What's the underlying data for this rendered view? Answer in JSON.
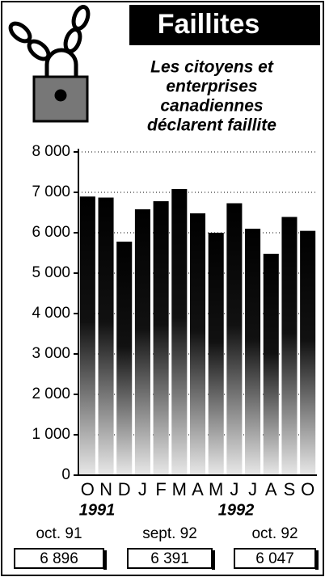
{
  "chart_data": {
    "type": "bar",
    "title": "Faillites",
    "subtitle_lines": [
      "Les citoyens et",
      "enterprises",
      "canadiennes",
      "déclarent faillite"
    ],
    "categories": [
      "O",
      "N",
      "D",
      "J",
      "F",
      "M",
      "A",
      "M",
      "J",
      "J",
      "A",
      "S",
      "O"
    ],
    "values": [
      6896,
      6870,
      5780,
      6580,
      6780,
      7080,
      6480,
      6000,
      6730,
      6100,
      5480,
      6391,
      6047
    ],
    "year_labels": [
      "1991",
      "1992"
    ],
    "ylim": [
      0,
      8000
    ],
    "yticks": [
      0,
      {
        "value": 1000,
        "label": "1 000"
      },
      {
        "value": 2000,
        "label": "2 000"
      },
      {
        "value": 3000,
        "label": "3 000"
      },
      {
        "value": 4000,
        "label": "4 000"
      },
      {
        "value": 5000,
        "label": "5 000"
      },
      {
        "value": 6000,
        "label": "6 000"
      },
      {
        "value": 7000,
        "label": "7 000"
      },
      {
        "value": 8000,
        "label": "8 000"
      }
    ],
    "grid": true,
    "color": "#000000",
    "highlights": [
      {
        "period": "oct. 91",
        "value": 6896,
        "label": "6 896"
      },
      {
        "period": "sept. 92",
        "value": 6391,
        "label": "6 391"
      },
      {
        "period": "oct. 92",
        "value": 6047,
        "label": "6 047"
      }
    ]
  }
}
